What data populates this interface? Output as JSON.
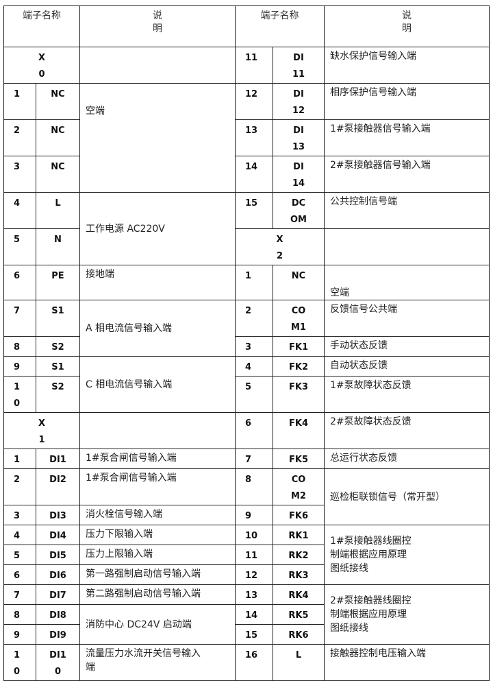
{
  "header": {
    "left_name": "端子名称",
    "left_desc": "说\n明",
    "right_name": "端子名称",
    "right_desc": "说\n明"
  },
  "left": [
    {
      "group": "X\n0",
      "desc": ""
    },
    {
      "num": "1",
      "code": "NC",
      "desc": "空端",
      "span": 3
    },
    {
      "num": "2",
      "code": "NC"
    },
    {
      "num": "3",
      "code": "NC"
    },
    {
      "num": "4",
      "code": "L",
      "desc": "工作电源 AC220V",
      "span": 2
    },
    {
      "num": "5",
      "code": "N"
    },
    {
      "num": "6",
      "code": "PE",
      "desc": "接地端"
    },
    {
      "num": "7",
      "code": "S1",
      "desc": "A 相电流信号输入端",
      "span": 2
    },
    {
      "num": "8",
      "code": "S2"
    },
    {
      "num": "9",
      "code": "S1",
      "desc": "C 相电流信号输入端",
      "span": 2
    },
    {
      "num": "1\n0",
      "code": "S2"
    },
    {
      "group": "X\n1",
      "desc": ""
    },
    {
      "num": "1",
      "code": "DI1",
      "desc": "1#泵合闸信号输入端"
    },
    {
      "num": "2",
      "code": "DI2",
      "desc": "1#泵合闸信号输入端"
    },
    {
      "num": "3",
      "code": "DI3",
      "desc": "消火栓信号输入端"
    },
    {
      "num": "4",
      "code": "DI4",
      "desc": "压力下限输入端"
    },
    {
      "num": "5",
      "code": "DI5",
      "desc": "压力上限输入端"
    },
    {
      "num": "6",
      "code": "DI6",
      "desc": "第一路强制启动信号输入端"
    },
    {
      "num": "7",
      "code": "DI7",
      "desc": "第二路强制启动信号输入端"
    },
    {
      "num": "8",
      "code": "DI8",
      "desc": "消防中心 DC24V 启动端",
      "span": 2
    },
    {
      "num": "9",
      "code": "DI9"
    },
    {
      "num": "1\n0",
      "code": "DI1\n0",
      "desc": "流量压力水流开关信号输入\n端"
    }
  ],
  "right": [
    {
      "num": "11",
      "code": "DI\n11",
      "desc": "缺水保护信号输入端"
    },
    {
      "num": "12",
      "code": "DI\n12",
      "desc": "相序保护信号输入端"
    },
    {
      "num": "13",
      "code": "DI\n13",
      "desc": "1#泵接触器信号输入端"
    },
    {
      "num": "14",
      "code": "DI\n14",
      "desc": "2#泵接触器信号输入端"
    },
    {
      "num": "15",
      "code": "DC\nOM",
      "desc": "公共控制信号端"
    },
    {
      "group": "X\n2",
      "desc": ""
    },
    {
      "num": "1",
      "code": "NC",
      "desc": "空端"
    },
    {
      "num": "2",
      "code": "CO\nM1",
      "desc": "反馈信号公共端"
    },
    {
      "num": "3",
      "code": "FK1",
      "desc": "手动状态反馈"
    },
    {
      "num": "4",
      "code": "FK2",
      "desc": "自动状态反馈"
    },
    {
      "num": "5",
      "code": "FK3",
      "desc": "1#泵故障状态反馈"
    },
    {
      "num": "6",
      "code": "FK4",
      "desc": "2#泵故障状态反馈"
    },
    {
      "num": "7",
      "code": "FK5",
      "desc": "总运行状态反馈"
    },
    {
      "num": "8",
      "code": "CO\nM2",
      "desc": "巡检柜联锁信号（常开型）",
      "span": 2
    },
    {
      "num": "9",
      "code": "FK6"
    },
    {
      "num": "10",
      "code": "RK1",
      "desc": "1#泵接触器线圈控\n制端根据应用原理\n图纸接线",
      "span": 3
    },
    {
      "num": "11",
      "code": "RK2"
    },
    {
      "num": "12",
      "code": "RK3"
    },
    {
      "num": "13",
      "code": "RK4",
      "desc": "2#泵接触器线圈控\n制端根据应用原理\n图纸接线",
      "span": 3
    },
    {
      "num": "14",
      "code": "RK5"
    },
    {
      "num": "15",
      "code": "RK6"
    },
    {
      "num": "16",
      "code": "L",
      "desc": "接触器控制电压输入端"
    }
  ]
}
